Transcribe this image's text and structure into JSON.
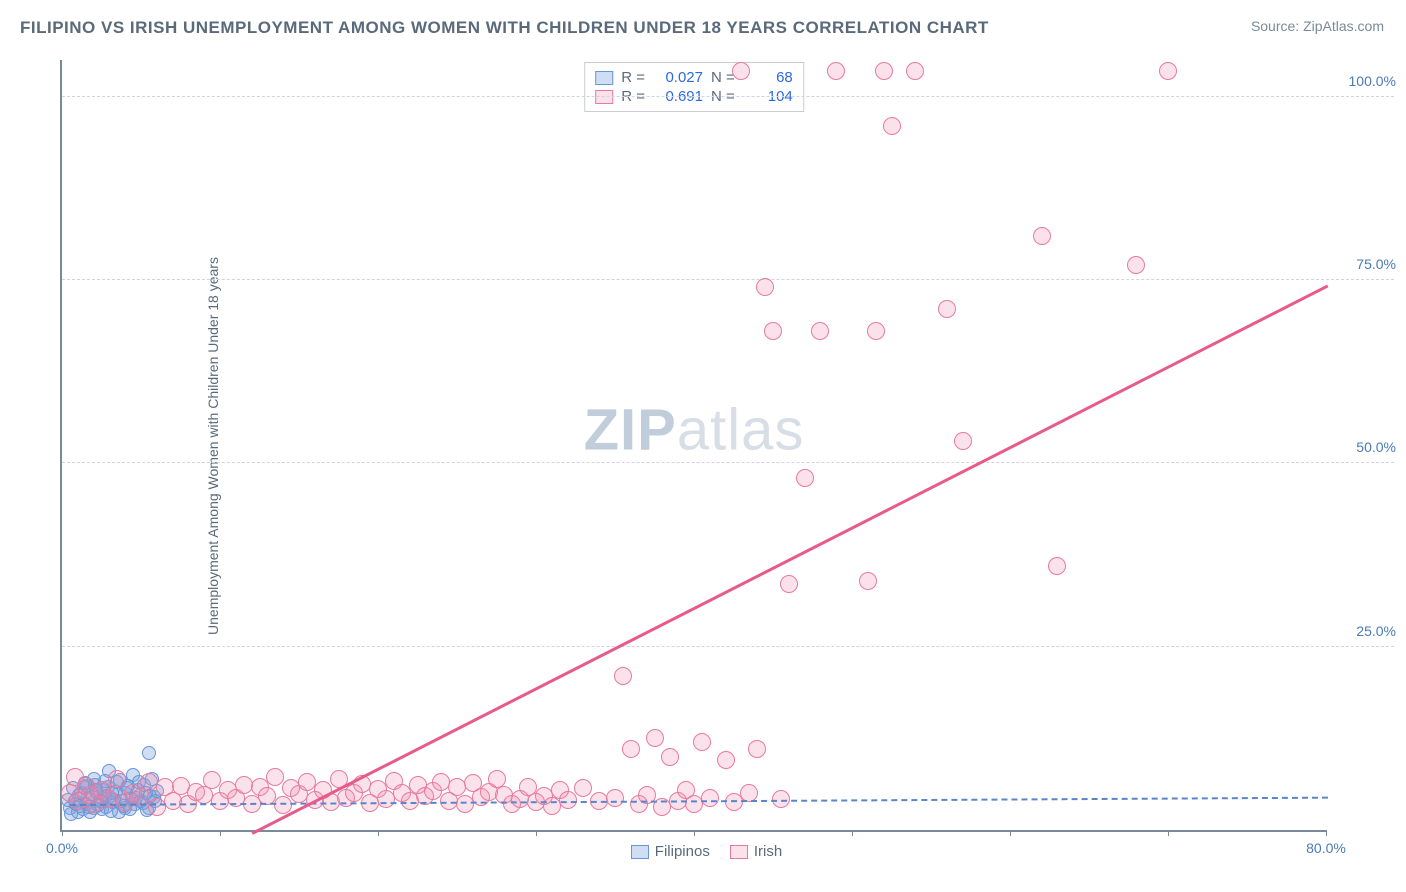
{
  "title": "FILIPINO VS IRISH UNEMPLOYMENT AMONG WOMEN WITH CHILDREN UNDER 18 YEARS CORRELATION CHART",
  "source": "Source: ZipAtlas.com",
  "y_axis_label": "Unemployment Among Women with Children Under 18 years",
  "watermark_zip": "ZIP",
  "watermark_atlas": "atlas",
  "chart": {
    "type": "scatter",
    "xlim": [
      0,
      80
    ],
    "ylim": [
      0,
      105
    ],
    "x_ticks": [
      0,
      10,
      20,
      30,
      40,
      50,
      60,
      70,
      80
    ],
    "x_tick_labels": {
      "0": "0.0%",
      "80": "80.0%"
    },
    "y_ticks": [
      25,
      50,
      75,
      100
    ],
    "y_tick_labels": {
      "25": "25.0%",
      "50": "50.0%",
      "75": "75.0%",
      "100": "100.0%"
    },
    "grid_color": "#d0d5dd",
    "axis_color": "#7a8a9a",
    "background_color": "#ffffff",
    "marker_radius_blue": 7,
    "marker_radius_pink": 9,
    "series": [
      {
        "name": "Filipinos",
        "legend_label": "Filipinos",
        "color_fill": "rgba(120,160,220,0.35)",
        "color_stroke": "#6a95d8",
        "R": "0.027",
        "N": "68",
        "trend": {
          "x1": 0.5,
          "y1": 3.8,
          "x2": 80,
          "y2": 4.8,
          "dashed": true
        },
        "points": [
          [
            0.5,
            3
          ],
          [
            0.8,
            4
          ],
          [
            1,
            2.5
          ],
          [
            1.2,
            5
          ],
          [
            1.5,
            3.5
          ],
          [
            1.6,
            6
          ],
          [
            1.8,
            4.2
          ],
          [
            2,
            3
          ],
          [
            2,
            7
          ],
          [
            2.2,
            5
          ],
          [
            2.4,
            4
          ],
          [
            2.5,
            2.8
          ],
          [
            2.6,
            5.5
          ],
          [
            2.8,
            3.2
          ],
          [
            3,
            4.5
          ],
          [
            3,
            8
          ],
          [
            3.2,
            3.8
          ],
          [
            3.4,
            5.2
          ],
          [
            3.5,
            6.5
          ],
          [
            3.6,
            2.5
          ],
          [
            3.8,
            4
          ],
          [
            4,
            5
          ],
          [
            4,
            3
          ],
          [
            4.2,
            6
          ],
          [
            4.4,
            4.2
          ],
          [
            4.5,
            7.5
          ],
          [
            4.6,
            3.5
          ],
          [
            4.8,
            5.5
          ],
          [
            5,
            4
          ],
          [
            5.2,
            6.2
          ],
          [
            5.5,
            3
          ],
          [
            5.5,
            10.5
          ],
          [
            5.8,
            4.5
          ],
          [
            0.6,
            2.2
          ],
          [
            0.9,
            3.6
          ],
          [
            1.1,
            4.8
          ],
          [
            1.3,
            2.9
          ],
          [
            1.4,
            5.8
          ],
          [
            1.7,
            3.1
          ],
          [
            1.9,
            4.9
          ],
          [
            2.1,
            6.2
          ],
          [
            2.3,
            3.4
          ],
          [
            2.7,
            4.7
          ],
          [
            2.9,
            5.9
          ],
          [
            3.1,
            2.6
          ],
          [
            3.3,
            4.1
          ],
          [
            3.7,
            6.8
          ],
          [
            3.9,
            3.3
          ],
          [
            4.1,
            5.7
          ],
          [
            4.3,
            2.9
          ],
          [
            4.7,
            4.4
          ],
          [
            4.9,
            6.5
          ],
          [
            5.1,
            3.7
          ],
          [
            5.3,
            5.1
          ],
          [
            5.4,
            2.7
          ],
          [
            5.6,
            4.6
          ],
          [
            5.7,
            6.9
          ],
          [
            5.9,
            3.9
          ],
          [
            6,
            5.3
          ],
          [
            0.4,
            4.1
          ],
          [
            0.7,
            5.7
          ],
          [
            1.15,
            3.3
          ],
          [
            1.45,
            6.4
          ],
          [
            1.75,
            2.4
          ],
          [
            2.15,
            5.4
          ],
          [
            2.45,
            3.9
          ],
          [
            2.75,
            6.7
          ],
          [
            3.15,
            5.1
          ]
        ]
      },
      {
        "name": "Irish",
        "legend_label": "Irish",
        "color_fill": "rgba(240,140,170,0.25)",
        "color_stroke": "#e87aa0",
        "R": "0.691",
        "N": "104",
        "trend": {
          "x1": 12,
          "y1": 0,
          "x2": 80,
          "y2": 74.5,
          "dashed": false
        },
        "points": [
          [
            0.5,
            5
          ],
          [
            1,
            4
          ],
          [
            1.5,
            6
          ],
          [
            2,
            3.5
          ],
          [
            2.5,
            5.5
          ],
          [
            3,
            4.2
          ],
          [
            3.5,
            7
          ],
          [
            4,
            3.8
          ],
          [
            4.5,
            5
          ],
          [
            5,
            4.5
          ],
          [
            5.5,
            6.5
          ],
          [
            6,
            3.2
          ],
          [
            6.5,
            5.8
          ],
          [
            7,
            4
          ],
          [
            7.5,
            6
          ],
          [
            8,
            3.5
          ],
          [
            8.5,
            5.2
          ],
          [
            9,
            4.8
          ],
          [
            9.5,
            6.8
          ],
          [
            10,
            3.9
          ],
          [
            10.5,
            5.5
          ],
          [
            11,
            4.3
          ],
          [
            11.5,
            6.2
          ],
          [
            12,
            3.6
          ],
          [
            12.5,
            5.9
          ],
          [
            13,
            4.6
          ],
          [
            13.5,
            7.2
          ],
          [
            14,
            3.4
          ],
          [
            14.5,
            5.7
          ],
          [
            15,
            4.9
          ],
          [
            15.5,
            6.5
          ],
          [
            16,
            4.1
          ],
          [
            16.5,
            5.4
          ],
          [
            17,
            3.8
          ],
          [
            17.5,
            6.9
          ],
          [
            18,
            4.4
          ],
          [
            18.5,
            5.1
          ],
          [
            19,
            6.3
          ],
          [
            19.5,
            3.7
          ],
          [
            20,
            5.6
          ],
          [
            20.5,
            4.2
          ],
          [
            21,
            6.7
          ],
          [
            21.5,
            5
          ],
          [
            22,
            3.9
          ],
          [
            22.5,
            6.1
          ],
          [
            23,
            4.7
          ],
          [
            23.5,
            5.3
          ],
          [
            24,
            6.5
          ],
          [
            24.5,
            4
          ],
          [
            25,
            5.8
          ],
          [
            25.5,
            3.6
          ],
          [
            26,
            6.4
          ],
          [
            26.5,
            4.5
          ],
          [
            27,
            5.2
          ],
          [
            27.5,
            7
          ],
          [
            28,
            4.8
          ],
          [
            28.5,
            3.5
          ],
          [
            29,
            4.2
          ],
          [
            29.5,
            5.9
          ],
          [
            30,
            3.8
          ],
          [
            30.5,
            4.6
          ],
          [
            31,
            3.3
          ],
          [
            31.5,
            5.4
          ],
          [
            32,
            4.1
          ],
          [
            33,
            5.7
          ],
          [
            34,
            3.9
          ],
          [
            35,
            4.4
          ],
          [
            35.5,
            21
          ],
          [
            36,
            11
          ],
          [
            36.5,
            3.5
          ],
          [
            37,
            4.8
          ],
          [
            37.5,
            12.5
          ],
          [
            38,
            3.2
          ],
          [
            38.5,
            10
          ],
          [
            39,
            4
          ],
          [
            39.5,
            5.5
          ],
          [
            40,
            3.6
          ],
          [
            40.5,
            12
          ],
          [
            41,
            4.3
          ],
          [
            42,
            9.5
          ],
          [
            42.5,
            3.8
          ],
          [
            43,
            103.5
          ],
          [
            43.5,
            5.1
          ],
          [
            44,
            11
          ],
          [
            44.5,
            74
          ],
          [
            45,
            68
          ],
          [
            45.5,
            4.2
          ],
          [
            46,
            33.5
          ],
          [
            47,
            48
          ],
          [
            48,
            68
          ],
          [
            49,
            103.5
          ],
          [
            51,
            34
          ],
          [
            51.5,
            68
          ],
          [
            52,
            103.5
          ],
          [
            52.5,
            96
          ],
          [
            54,
            103.5
          ],
          [
            56,
            71
          ],
          [
            57,
            53
          ],
          [
            62,
            81
          ],
          [
            63,
            36
          ],
          [
            68,
            77
          ],
          [
            70,
            103.5
          ],
          [
            0.8,
            7.2
          ],
          [
            1.8,
            4.8
          ]
        ]
      }
    ]
  },
  "legend_top": {
    "rows": [
      {
        "swatch": "blue",
        "r_label": "R =",
        "r_val": "0.027",
        "n_label": "N =",
        "n_val": "68"
      },
      {
        "swatch": "pink",
        "r_label": "R =",
        "r_val": "0.691",
        "n_label": "N =",
        "n_val": "104"
      }
    ]
  },
  "legend_bottom": {
    "items": [
      {
        "swatch": "blue",
        "label": "Filipinos"
      },
      {
        "swatch": "pink",
        "label": "Irish"
      }
    ]
  }
}
